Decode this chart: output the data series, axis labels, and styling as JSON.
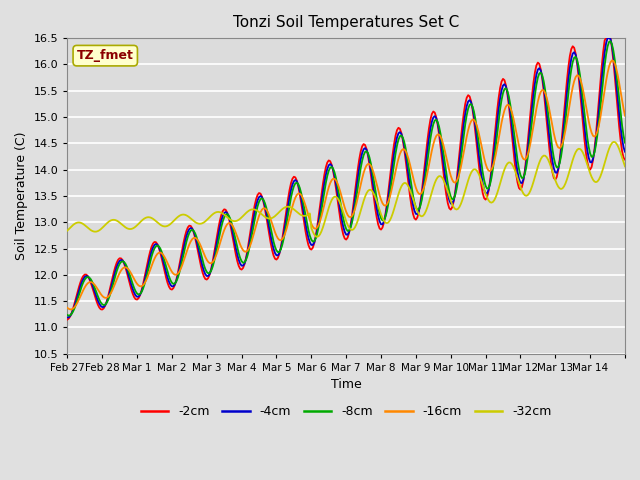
{
  "title": "Tonzi Soil Temperatures Set C",
  "xlabel": "Time",
  "ylabel": "Soil Temperature (C)",
  "ylim": [
    10.5,
    16.5
  ],
  "xlim": [
    0,
    16
  ],
  "background_color": "#e0e0e0",
  "plot_bg_color": "#dcdcdc",
  "grid_color": "white",
  "legend_label": "TZ_fmet",
  "legend_label_color": "#8b0000",
  "legend_box_color": "#ffffcc",
  "legend_box_edge": "#aaaa00",
  "series_colors": {
    "-2cm": "#ff0000",
    "-4cm": "#0000cc",
    "-8cm": "#00aa00",
    "-16cm": "#ff8800",
    "-32cm": "#cccc00"
  },
  "xtick_positions": [
    0,
    1,
    2,
    3,
    4,
    5,
    6,
    7,
    8,
    9,
    10,
    11,
    12,
    13,
    14,
    15,
    16
  ],
  "xtick_labels": [
    "Feb 27",
    "Feb 28",
    "Mar 1",
    "Mar 2",
    "Mar 3",
    "Mar 4",
    "Mar 5",
    "Mar 6",
    "Mar 7",
    "Mar 8",
    "Mar 9",
    "Mar 10",
    "Mar 11",
    "Mar 12",
    "Mar 13",
    "Mar 14",
    ""
  ],
  "ytick_values": [
    10.5,
    11.0,
    11.5,
    12.0,
    12.5,
    13.0,
    13.5,
    14.0,
    14.5,
    15.0,
    15.5,
    16.0,
    16.5
  ]
}
